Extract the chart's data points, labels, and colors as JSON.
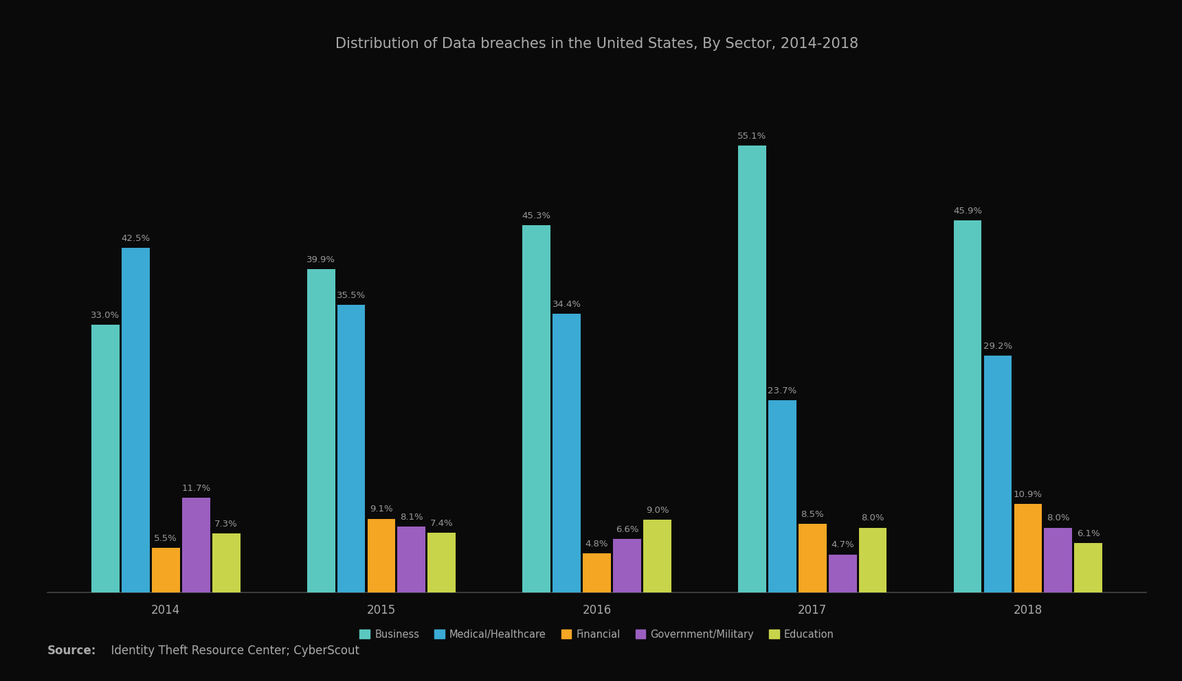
{
  "title": "Distribution of Data breaches in the United States, By Sector, 2014-2018",
  "years": [
    "2014",
    "2015",
    "2016",
    "2017",
    "2018"
  ],
  "categories": [
    "Business",
    "Medical/Healthcare",
    "Financial",
    "Government/Military",
    "Education"
  ],
  "colors": [
    "#5BC8C0",
    "#3BAAD4",
    "#F5A623",
    "#9B5FC0",
    "#C8D44A"
  ],
  "data": {
    "Business": [
      33.0,
      39.9,
      45.3,
      55.1,
      45.9
    ],
    "Medical/Healthcare": [
      42.5,
      35.5,
      34.4,
      23.7,
      29.2
    ],
    "Financial": [
      5.5,
      9.1,
      4.8,
      8.5,
      10.9
    ],
    "Government/Military": [
      11.7,
      8.1,
      6.6,
      4.7,
      8.0
    ],
    "Education": [
      7.3,
      7.4,
      9.0,
      8.0,
      6.1
    ]
  },
  "source_bold": "Source:",
  "source_rest": "  Identity Theft Resource Center; CyberScout",
  "background_color": "#0a0a0a",
  "text_color": "#aaaaaa",
  "label_color": "#999999",
  "axis_line_color": "#444444",
  "bar_width": 0.13,
  "ylim": [
    0,
    63
  ],
  "title_fontsize": 15,
  "label_fontsize": 9.5,
  "tick_fontsize": 12,
  "legend_fontsize": 10.5,
  "source_fontsize": 12
}
